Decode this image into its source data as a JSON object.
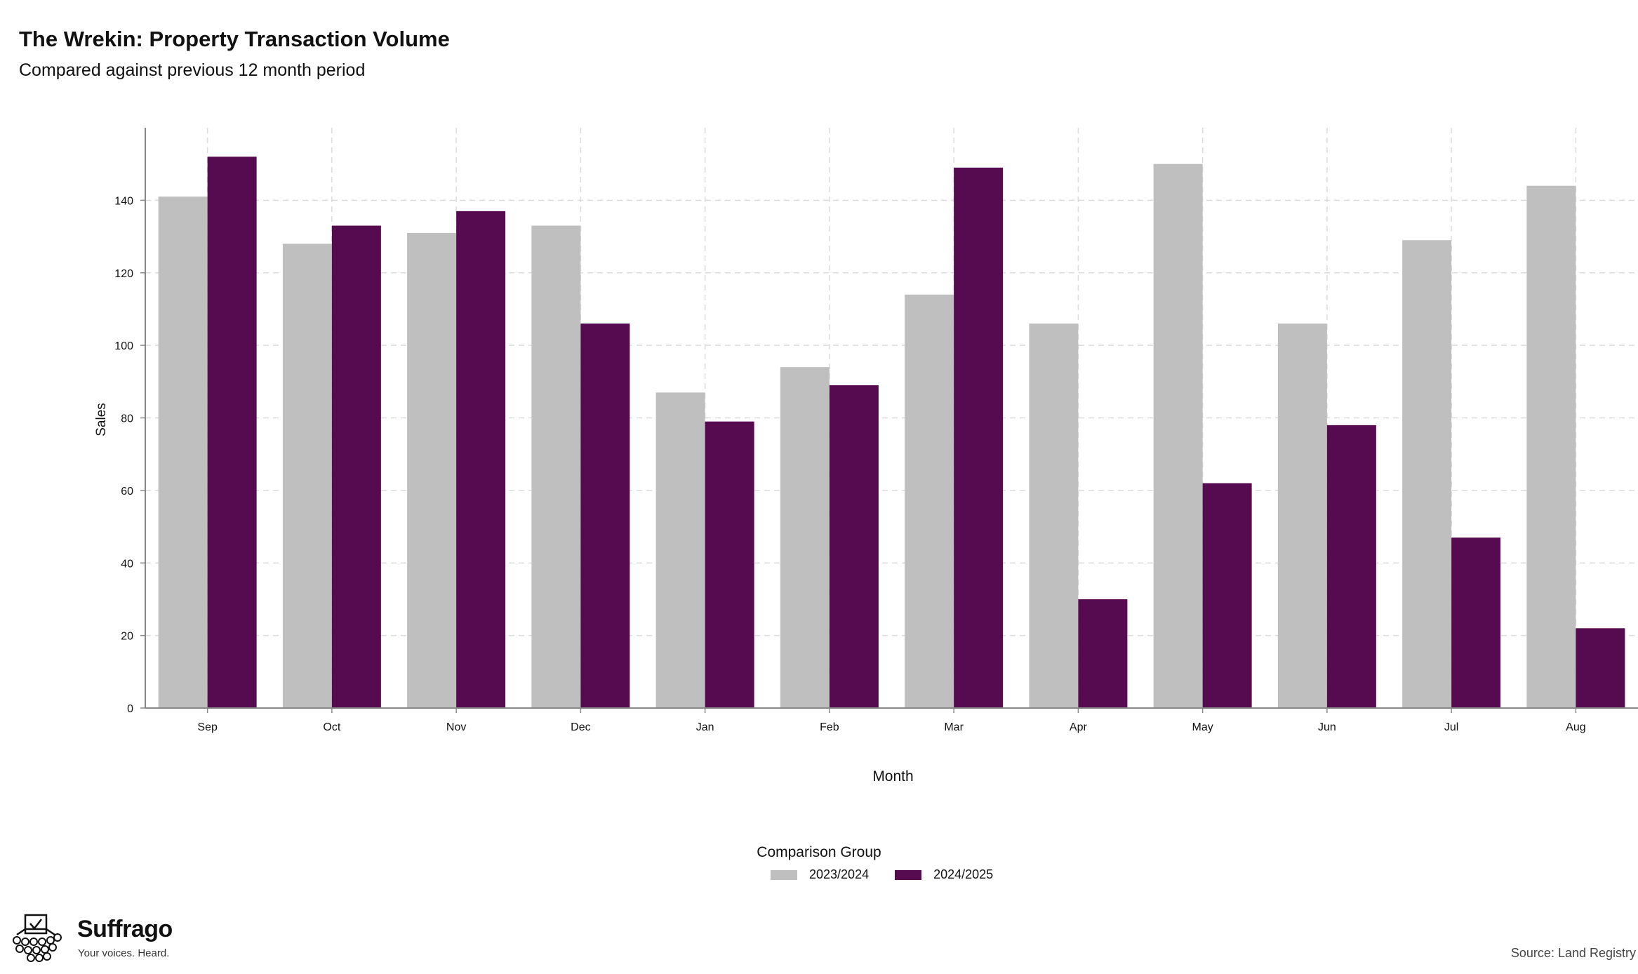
{
  "header": {
    "title": "The Wrekin: Property Transaction Volume",
    "subtitle": "Compared against previous 12 month period"
  },
  "legend": {
    "title": "Comparison Group",
    "items": [
      {
        "label": "2023/2024",
        "color": "#bfbfbf"
      },
      {
        "label": "2024/2025",
        "color": "#560a50"
      }
    ]
  },
  "footer": {
    "brand_name": "Suffrago",
    "brand_tagline": "Your voices. Heard.",
    "source": "Source: Land Registry"
  },
  "chart_data": {
    "type": "bar",
    "xlabel": "Month",
    "ylabel": "Sales",
    "ylim": [
      0,
      160
    ],
    "yticks": [
      0,
      20,
      40,
      60,
      80,
      100,
      120,
      140
    ],
    "grid": true,
    "legend_position": "bottom",
    "categories": [
      "Sep",
      "Oct",
      "Nov",
      "Dec",
      "Jan",
      "Feb",
      "Mar",
      "Apr",
      "May",
      "Jun",
      "Jul",
      "Aug"
    ],
    "series": [
      {
        "name": "2023/2024",
        "color": "#bfbfbf",
        "values": [
          141,
          128,
          131,
          133,
          87,
          94,
          114,
          106,
          150,
          106,
          129,
          144
        ]
      },
      {
        "name": "2024/2025",
        "color": "#560a50",
        "values": [
          152,
          133,
          137,
          106,
          79,
          89,
          149,
          30,
          62,
          78,
          47,
          22
        ]
      }
    ]
  }
}
